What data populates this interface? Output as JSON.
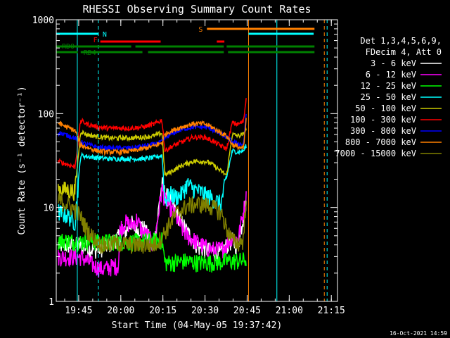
{
  "chart_data": {
    "type": "line",
    "title": "RHESSI Observing Summary Count Rates",
    "xlabel": "Start Time (04-May-05 19:37:42)",
    "ylabel": "Count Rate (s⁻¹ detector⁻¹)",
    "yscale": "log",
    "ylim": [
      1,
      1000
    ],
    "xlim_minutes": [
      -0.7,
      99.5
    ],
    "x_ticks": [
      {
        "t": 7.3,
        "label": "19:45"
      },
      {
        "t": 22.3,
        "label": "20:00"
      },
      {
        "t": 37.3,
        "label": "20:15"
      },
      {
        "t": 52.3,
        "label": "20:30"
      },
      {
        "t": 67.3,
        "label": "20:45"
      },
      {
        "t": 82.3,
        "label": "21:00"
      },
      {
        "t": 97.3,
        "label": "21:15"
      }
    ],
    "y_ticks": [
      {
        "v": 1,
        "label": "1"
      },
      {
        "v": 10,
        "label": "10"
      },
      {
        "v": 100,
        "label": "100"
      },
      {
        "v": 1000,
        "label": "1000"
      }
    ],
    "legend": {
      "header": [
        "Det 1,3,4,5,6,9,",
        "FDecim 4, Att 0"
      ],
      "placement": "right"
    },
    "series": [
      {
        "name": "3 - 6 keV",
        "color": "#ffffff",
        "x": [
          0,
          8,
          12,
          14,
          18,
          20,
          24,
          26,
          28,
          30,
          32,
          34,
          35,
          36,
          37,
          38,
          40,
          42,
          44,
          46,
          50,
          54,
          58,
          60,
          62,
          64,
          67
        ],
        "y": [
          4,
          4,
          3.6,
          3.6,
          4,
          4.5,
          5.5,
          7,
          5.5,
          6.5,
          5,
          4,
          6,
          11,
          18,
          14,
          12,
          9,
          7,
          5.5,
          3.8,
          3.5,
          3.2,
          4,
          4.5,
          3.8,
          12
        ]
      },
      {
        "name": "6 - 12 keV",
        "color": "#ff00ff",
        "x": [
          0,
          8,
          12,
          14,
          16,
          18,
          20,
          21.5,
          22,
          24,
          26,
          28,
          30,
          32,
          34,
          35,
          36,
          37,
          38,
          40,
          42,
          44,
          46,
          50,
          54,
          58,
          60,
          62,
          64,
          67
        ],
        "y": [
          3,
          3,
          2.5,
          2.3,
          2.2,
          2.3,
          2.4,
          2.4,
          6,
          7,
          6.5,
          7.5,
          5.5,
          5,
          3.8,
          6,
          10,
          16,
          12,
          10,
          8,
          6,
          5,
          4.2,
          3.6,
          3.6,
          4,
          5,
          4.5,
          13
        ]
      },
      {
        "name": "12 - 25 keV",
        "color": "#00ff00",
        "x": [
          0,
          8,
          10,
          15,
          20,
          25,
          30,
          34,
          37,
          38,
          40,
          45,
          50,
          55,
          60,
          64,
          67
        ],
        "y": [
          4.5,
          4.3,
          4.5,
          4.3,
          4.4,
          4.3,
          4.4,
          4.4,
          4.5,
          2.6,
          2.6,
          2.7,
          2.6,
          2.6,
          2.7,
          2.7,
          2.8
        ]
      },
      {
        "name": "25 - 50 keV",
        "color": "#00ffff",
        "x": [
          0,
          2,
          4,
          6,
          8,
          10,
          14,
          18,
          22,
          26,
          30,
          34,
          37,
          38,
          40,
          42,
          44,
          46,
          48,
          50,
          52,
          54,
          56,
          58,
          62,
          64,
          66,
          67
        ],
        "y": [
          9,
          8.5,
          8,
          7,
          36,
          35,
          34,
          33,
          33,
          33,
          33,
          34,
          36,
          12,
          14,
          13,
          14,
          18,
          16,
          15,
          14,
          13,
          12,
          11,
          40,
          39,
          40,
          46
        ]
      },
      {
        "name": "50 - 100 keV",
        "color": "#cccc00",
        "x": [
          0,
          3,
          6,
          8,
          10,
          14,
          18,
          22,
          26,
          30,
          34,
          37,
          38,
          40,
          44,
          48,
          52,
          54,
          56,
          60,
          62,
          64,
          66,
          67
        ],
        "y": [
          16,
          15.5,
          15,
          65,
          60,
          57,
          55,
          55,
          55,
          56,
          58,
          62,
          22,
          24,
          28,
          31,
          31,
          30,
          27,
          22,
          60,
          58,
          60,
          70
        ]
      },
      {
        "name": "100 - 300 keV",
        "color": "#ff0000",
        "x": [
          0,
          3,
          6,
          8,
          10,
          14,
          18,
          22,
          26,
          30,
          34,
          37,
          38,
          40,
          44,
          48,
          52,
          54,
          56,
          60,
          62,
          64,
          66,
          67
        ],
        "y": [
          31,
          29,
          27,
          85,
          78,
          72,
          70,
          70,
          70,
          72,
          77,
          85,
          40,
          44,
          50,
          56,
          56,
          53,
          49,
          42,
          80,
          77,
          82,
          150
        ]
      },
      {
        "name": "300 - 800 keV",
        "color": "#0000ff",
        "x": [
          0,
          3,
          6,
          8,
          10,
          14,
          18,
          22,
          26,
          30,
          34,
          37,
          38,
          40,
          44,
          48,
          52,
          54,
          56,
          60,
          62,
          64,
          66,
          67
        ],
        "y": [
          63,
          59,
          55,
          50,
          47,
          44,
          43,
          43,
          43,
          45,
          47,
          50,
          55,
          60,
          68,
          72,
          72,
          70,
          65,
          56,
          50,
          48,
          47,
          100
        ]
      },
      {
        "name": "800 - 7000 keV",
        "color": "#ff8000",
        "x": [
          0,
          3,
          6,
          8,
          10,
          14,
          18,
          22,
          26,
          30,
          34,
          37,
          38,
          40,
          44,
          48,
          52,
          54,
          56,
          60,
          62,
          64,
          66,
          67
        ],
        "y": [
          80,
          72,
          66,
          46,
          44,
          40,
          39,
          39,
          40,
          42,
          45,
          49,
          60,
          65,
          72,
          78,
          78,
          74,
          68,
          58,
          47,
          44,
          42,
          90
        ]
      },
      {
        "name": "7000 - 15000 keV",
        "color": "#808000",
        "x": [
          0,
          3,
          6,
          8,
          10,
          12,
          14,
          16,
          18,
          20,
          24,
          28,
          32,
          34,
          36,
          37,
          38,
          40,
          42,
          44,
          46,
          50,
          54,
          58,
          60,
          62,
          64,
          66,
          67
        ],
        "y": [
          12,
          11,
          9.5,
          8,
          6,
          5,
          4.3,
          4,
          4,
          4.2,
          4.1,
          4,
          4,
          4,
          4.5,
          5,
          5.5,
          7,
          8.5,
          9.5,
          10.5,
          11,
          10.5,
          9,
          6,
          4.5,
          4.2,
          4.5,
          15
        ]
      }
    ],
    "state_bars": [
      {
        "label": "N",
        "color": "#00ffff",
        "segments": [
          [
            -0.7,
            14.3
          ],
          [
            67.8,
            91
          ]
        ]
      },
      {
        "label": "F",
        "color": "#ff0000",
        "segments": [
          [
            15,
            36.5
          ],
          [
            56.5,
            59.2
          ]
        ]
      },
      {
        "label": "S",
        "color": "#ff8000",
        "segments": [
          [
            53,
            91.3
          ]
        ]
      },
      {
        "label": "RD0",
        "color": "#008000",
        "segments": [
          [
            -0.7,
            26
          ],
          [
            27.5,
            59
          ],
          [
            60,
            91.3
          ]
        ]
      },
      {
        "label": "RD4",
        "color": "#008000",
        "segments": [
          [
            -0.7,
            7
          ],
          [
            8,
            30
          ],
          [
            32,
            59
          ],
          [
            60.5,
            91.3
          ]
        ]
      }
    ],
    "vlines": [
      {
        "t": 6.8,
        "color": "#00ffff",
        "style": "solid"
      },
      {
        "t": 14.3,
        "color": "#00ffff",
        "style": "dashed"
      },
      {
        "t": 67.8,
        "color": "#ff8000",
        "style": "solid"
      },
      {
        "t": 77.9,
        "color": "#00ffff",
        "style": "solid"
      },
      {
        "t": 94.8,
        "color": "#ff8000",
        "style": "dashed"
      },
      {
        "t": 95.8,
        "color": "#00ffff",
        "style": "dashed"
      }
    ],
    "timestamp": "16-Oct-2021 14:59"
  }
}
